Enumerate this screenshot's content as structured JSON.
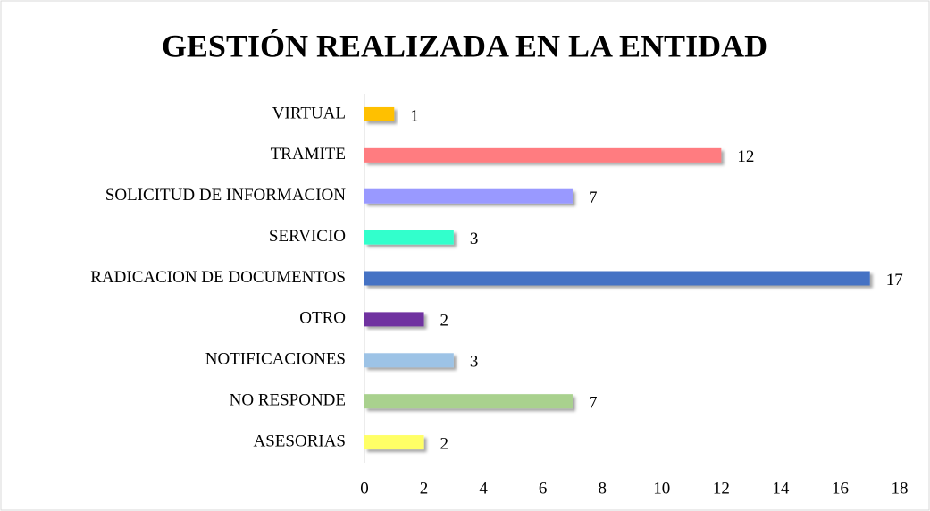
{
  "chart_data": {
    "type": "barh",
    "title": "GESTIÓN REALIZADA EN LA ENTIDAD",
    "categories": [
      "VIRTUAL",
      "TRAMITE",
      "SOLICITUD DE INFORMACION",
      "SERVICIO",
      "RADICACION DE DOCUMENTOS",
      "OTRO",
      "NOTIFICACIONES",
      "NO RESPONDE",
      "ASESORIAS"
    ],
    "values": [
      1,
      12,
      7,
      3,
      17,
      2,
      3,
      7,
      2
    ],
    "colors": [
      "#ffc000",
      "#ff7c80",
      "#9999ff",
      "#33ffcc",
      "#4472c4",
      "#7030a0",
      "#9dc3e6",
      "#a9d18e",
      "#ffff66"
    ],
    "xlim": [
      0,
      18
    ],
    "xticks": [
      0,
      2,
      4,
      6,
      8,
      10,
      12,
      14,
      16,
      18
    ],
    "grid": false
  }
}
